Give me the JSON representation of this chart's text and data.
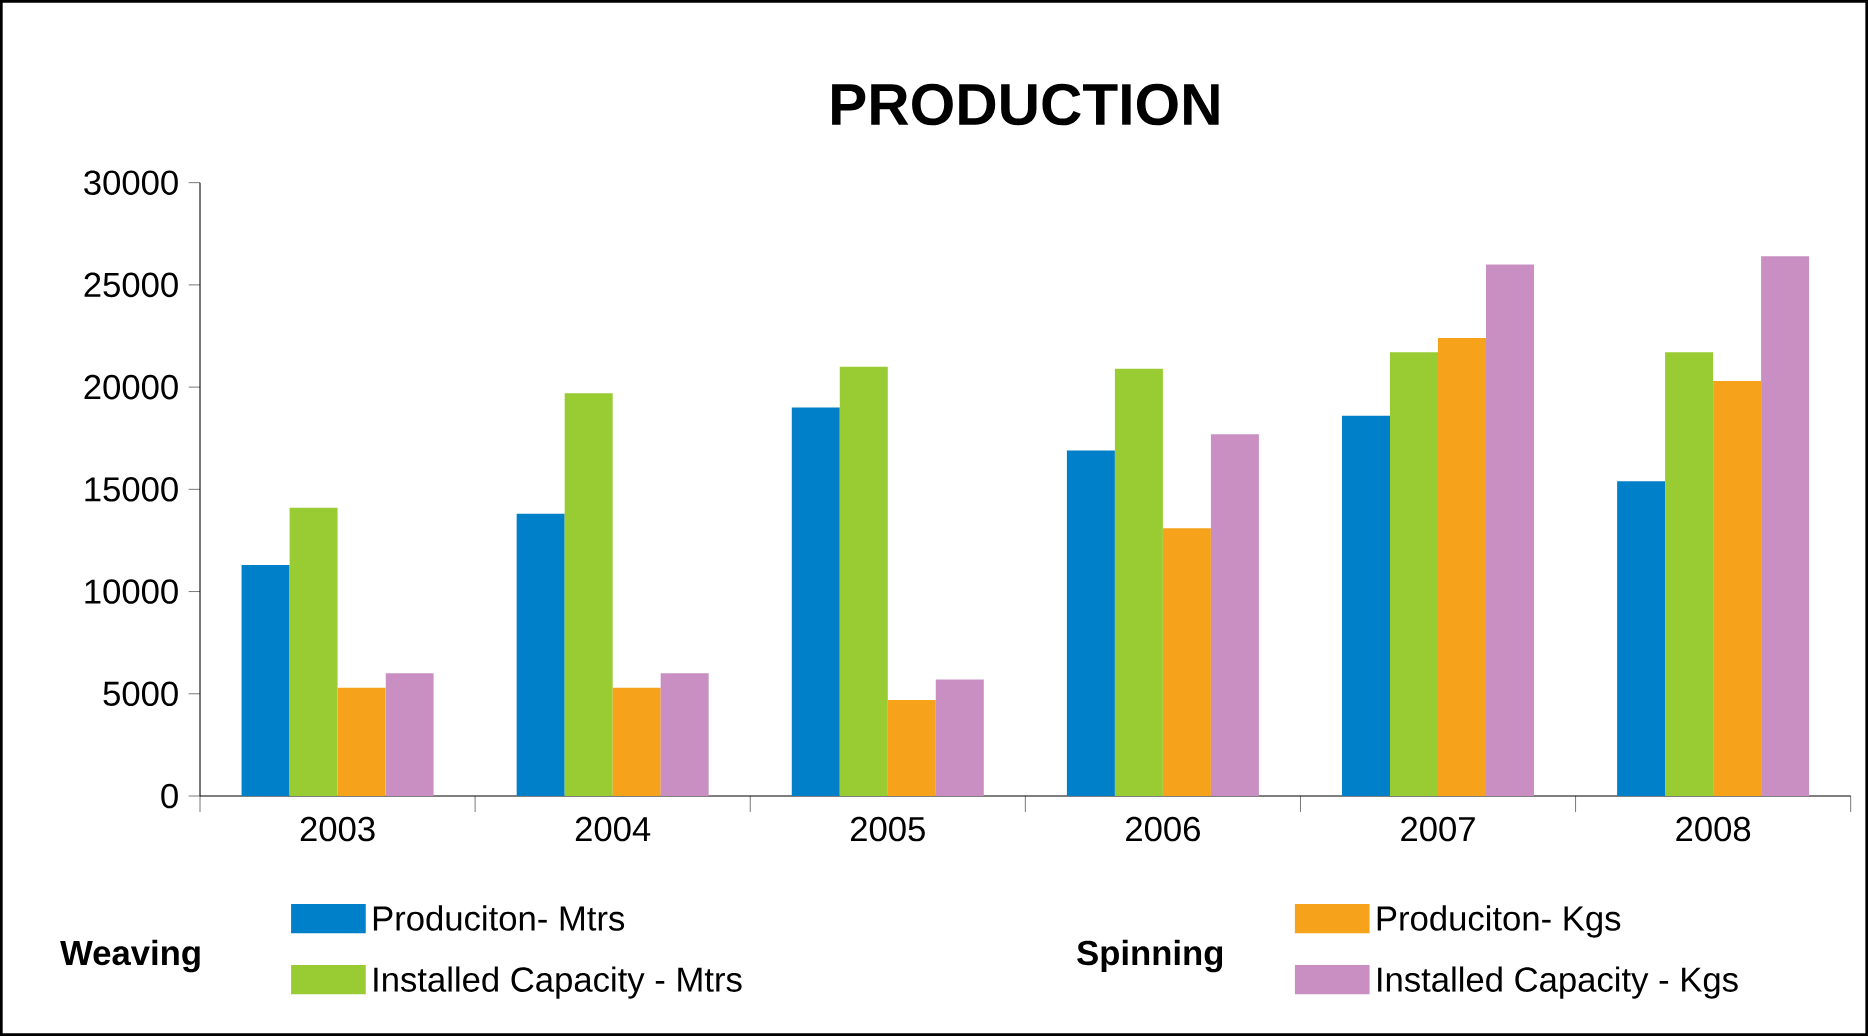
{
  "chart_data": {
    "type": "bar",
    "title": "PRODUCTION",
    "categories": [
      "2003",
      "2004",
      "2005",
      "2006",
      "2007",
      "2008"
    ],
    "series": [
      {
        "name": "Produciton- Mtrs",
        "color": "#0080c8",
        "values": [
          11300,
          13800,
          19000,
          16900,
          18600,
          15400
        ]
      },
      {
        "name": "Installed Capacity - Mtrs",
        "color": "#99cc33",
        "values": [
          14100,
          19700,
          21000,
          20900,
          21700,
          21700
        ]
      },
      {
        "name": "Produciton- Kgs",
        "color": "#f7a21b",
        "values": [
          5300,
          5300,
          4700,
          13100,
          22400,
          20300
        ]
      },
      {
        "name": "Installed Capacity - Kgs",
        "color": "#c98fc3",
        "values": [
          6000,
          6000,
          5700,
          17700,
          26000,
          26400
        ]
      }
    ],
    "ylim": [
      0,
      30000
    ],
    "yticks": [
      0,
      5000,
      10000,
      15000,
      20000,
      25000,
      30000
    ],
    "grid": false,
    "legend": "bottom",
    "annotations": [
      "Weaving",
      "Spinning"
    ]
  }
}
